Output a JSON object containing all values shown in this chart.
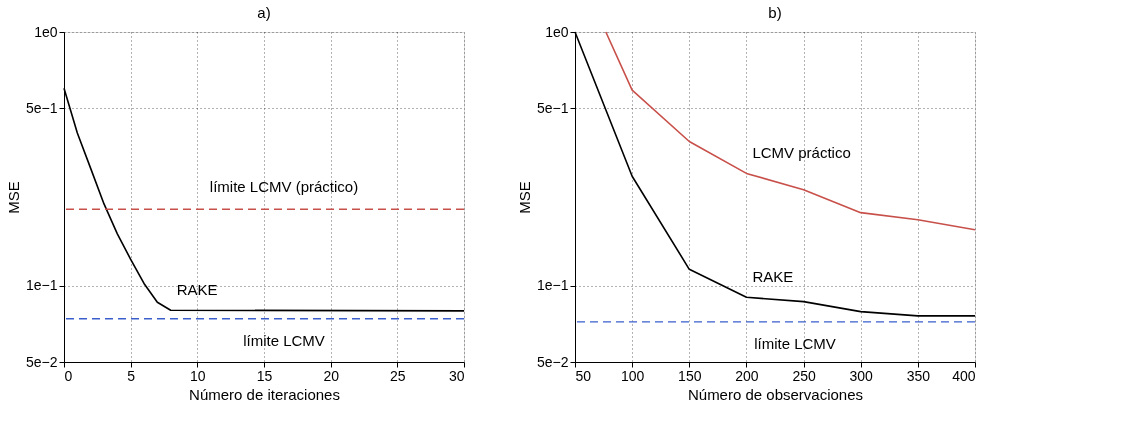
{
  "chart_data": [
    {
      "type": "line",
      "title": "a)",
      "xlabel": "Número de iteraciones",
      "ylabel": "MSE",
      "log": "y",
      "grid": true,
      "marker": "none",
      "line_style": "solid",
      "xlim": [
        0,
        30
      ],
      "xticks": [
        0,
        5,
        10,
        15,
        20,
        25,
        30
      ],
      "ylim": [
        0.05,
        1
      ],
      "yticks": [
        {
          "value": 0.05,
          "label": "5e−2"
        },
        {
          "value": 0.1,
          "label": "1e−1"
        },
        {
          "value": 0.5,
          "label": "5e−1"
        },
        {
          "value": 1,
          "label": "1e0"
        }
      ],
      "series": [
        {
          "name": "RAKE",
          "color": "#000000",
          "x": [
            0,
            1,
            2,
            3,
            4,
            5,
            6,
            7,
            8,
            30
          ],
          "values": [
            0.6,
            0.4,
            0.29,
            0.21,
            0.16,
            0.127,
            0.102,
            0.086,
            0.08,
            0.0795
          ]
        }
      ],
      "ref_lines": [
        {
          "axis": "y",
          "value": 0.2,
          "label": "límite LCMV (práctico)",
          "color": "#c8504a",
          "line_style": "dashed"
        },
        {
          "axis": "y",
          "value": 0.074,
          "label": "límite LCMV",
          "color": "#3a5fcd",
          "line_style": "dashed"
        }
      ]
    },
    {
      "type": "line",
      "title": "b)",
      "xlabel": "Número de observaciones",
      "ylabel": "MSE",
      "log": "y",
      "grid": true,
      "marker": "none",
      "line_style": "solid",
      "xlim": [
        50,
        400
      ],
      "xticks": [
        50,
        100,
        150,
        200,
        250,
        300,
        350,
        400
      ],
      "ylim": [
        0.05,
        1
      ],
      "yticks": [
        {
          "value": 0.05,
          "label": "5e−2"
        },
        {
          "value": 0.1,
          "label": "1e−1"
        },
        {
          "value": 0.5,
          "label": "5e−1"
        },
        {
          "value": 1,
          "label": "1e0"
        }
      ],
      "series": [
        {
          "name": "RAKE",
          "color": "#000000",
          "x": [
            50,
            100,
            150,
            200,
            250,
            300,
            350,
            400
          ],
          "values": [
            1.0,
            0.27,
            0.116,
            0.09,
            0.0865,
            0.079,
            0.076,
            0.076
          ]
        },
        {
          "name": "LCMV práctico",
          "color": "#c8504a",
          "x": [
            77,
            100,
            150,
            200,
            250,
            300,
            350,
            400
          ],
          "values": [
            1.0,
            0.59,
            0.37,
            0.277,
            0.239,
            0.194,
            0.182,
            0.166
          ]
        }
      ],
      "ref_lines": [
        {
          "axis": "y",
          "value": 0.072,
          "label": "límite LCMV",
          "color": "#3a5fcd",
          "line_style": "dashed"
        }
      ]
    }
  ]
}
